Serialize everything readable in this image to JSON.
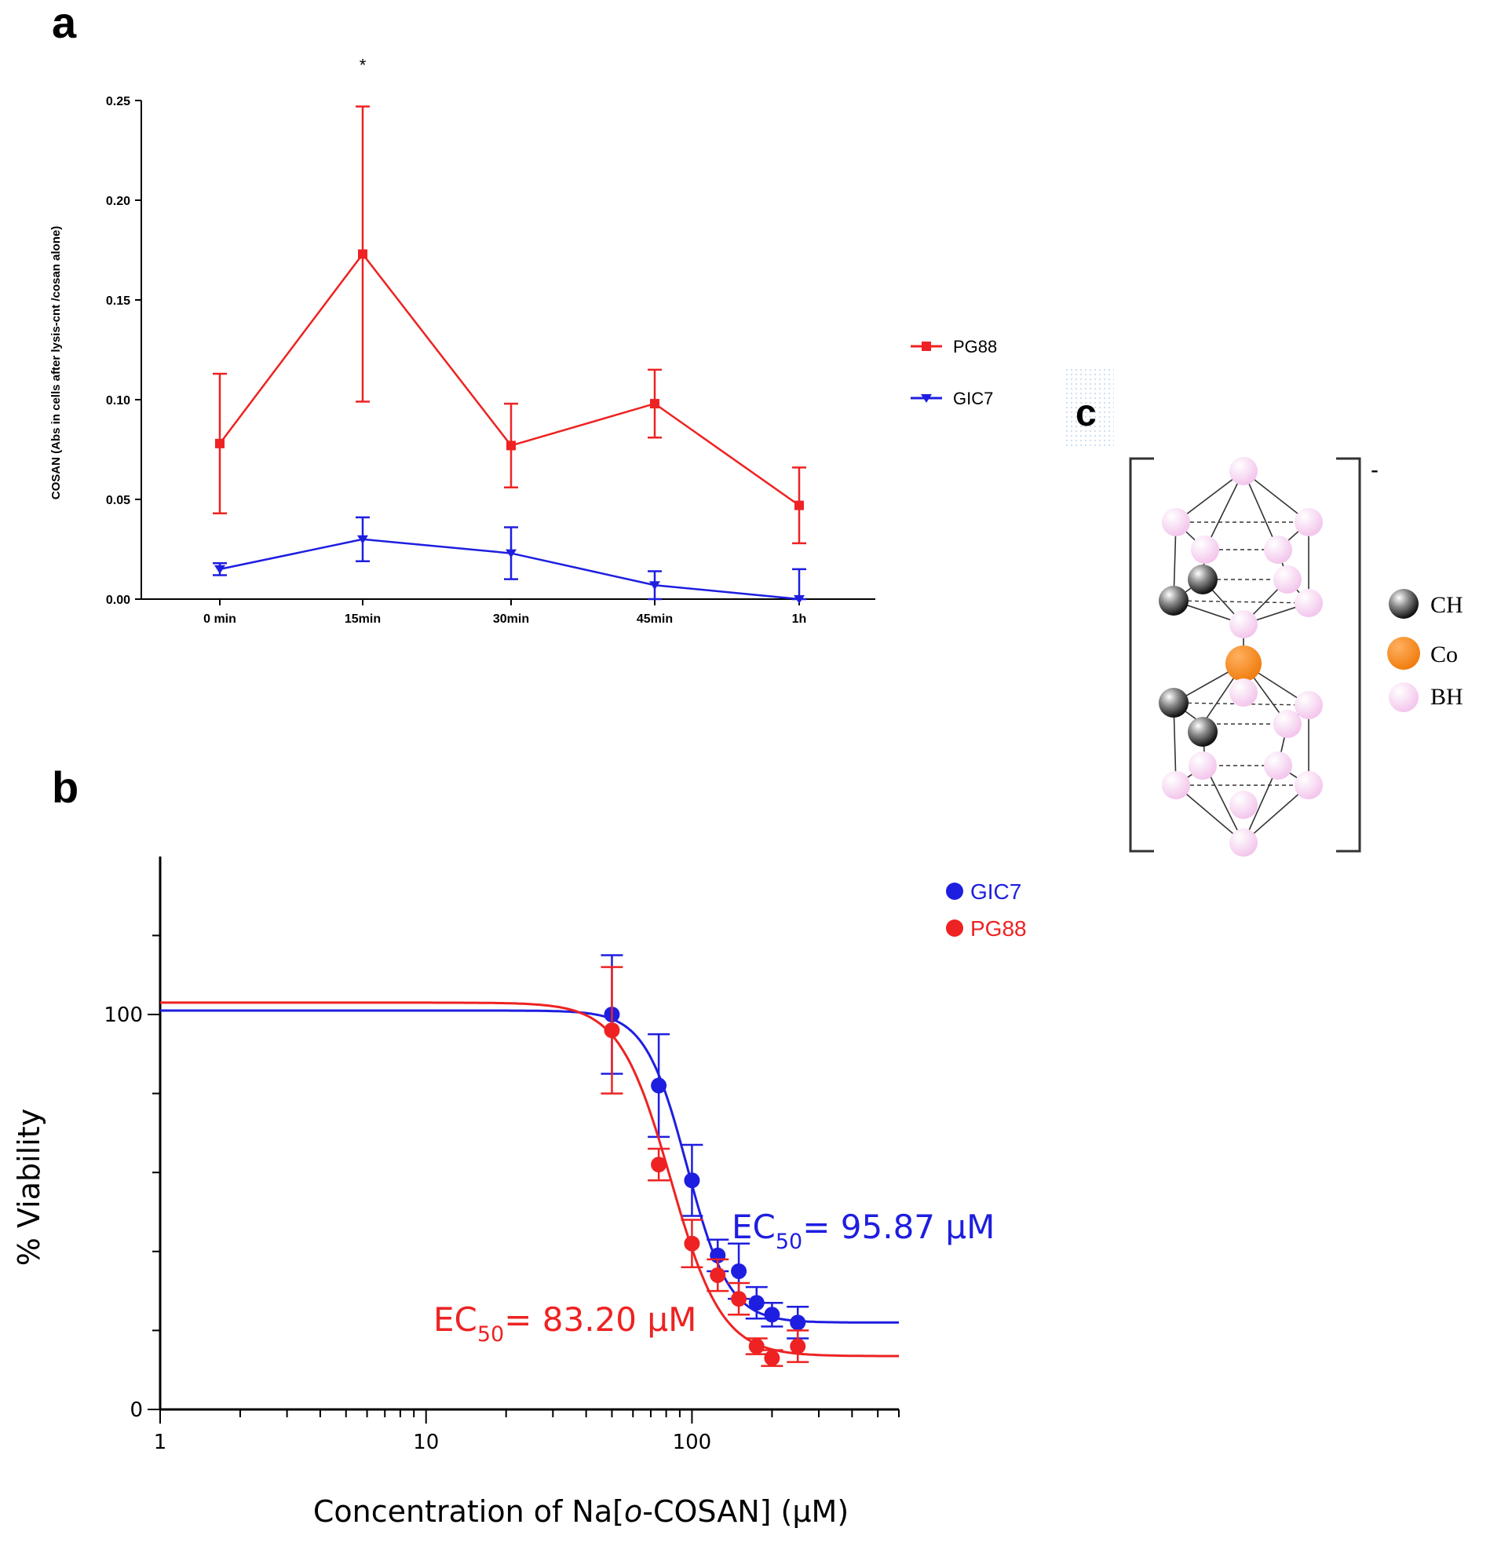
{
  "colors": {
    "red": "#ee2222",
    "blue": "#1e1ee0",
    "axis": "#000000",
    "co": "#f58a1f",
    "bh": "#f7d6f1",
    "ch": "#3a3a3a"
  },
  "panels": {
    "a": "a",
    "b": "b",
    "c": "c"
  },
  "chart_data": [
    {
      "id": "a",
      "type": "line",
      "title": "",
      "xlabel": "",
      "ylabel": "COSAN (Abs in cells after lysis-cnt /cosan alone)",
      "categories": [
        "0 min",
        "15min",
        "30min",
        "45min",
        "1h"
      ],
      "ylim": [
        0,
        0.25
      ],
      "yticks": [
        "0.00",
        "0.05",
        "0.10",
        "0.15",
        "0.20",
        "0.25"
      ],
      "annotations": [
        {
          "text": "*",
          "category": "15min",
          "y": 0.26
        }
      ],
      "series": [
        {
          "name": "PG88",
          "color": "#ee2222",
          "marker": "square",
          "values": [
            0.078,
            0.173,
            0.077,
            0.098,
            0.047
          ],
          "errors": [
            0.035,
            0.074,
            0.021,
            0.017,
            0.019
          ]
        },
        {
          "name": "GIC7",
          "color": "#1e1ee0",
          "marker": "triangle-down",
          "values": [
            0.015,
            0.03,
            0.023,
            0.007,
            0.0
          ],
          "errors": [
            0.003,
            0.011,
            0.013,
            0.007,
            0.015
          ]
        }
      ],
      "legend": "right"
    },
    {
      "id": "b",
      "type": "scatter",
      "title": "",
      "xlabel": "Concentration of Na[o-COSAN] (μM)",
      "xlabel_parts": [
        "Concentration of Na[",
        "o",
        "-COSAN] (μM)"
      ],
      "ylabel": "% Viability",
      "xscale": "log",
      "xlim": [
        1,
        600
      ],
      "ylim": [
        0,
        140
      ],
      "xticks": [
        "1",
        "10",
        "100"
      ],
      "yticks": [
        "0",
        "100"
      ],
      "series": [
        {
          "name": "GIC7",
          "color": "#1e1ee0",
          "x": [
            50,
            75,
            100,
            125,
            150,
            175,
            200,
            250
          ],
          "y": [
            100,
            82,
            58,
            39,
            35,
            27,
            24,
            22
          ],
          "errors": [
            15,
            13,
            9,
            4,
            7,
            4,
            3,
            4
          ],
          "fit": {
            "top": 101,
            "bottom": 22,
            "ec50": 95.87,
            "hill": 5.5
          },
          "ec50_label": {
            "prefix": "EC",
            "sub": "50",
            "suffix": "= 95.87 μM"
          }
        },
        {
          "name": "PG88",
          "color": "#ee2222",
          "x": [
            50,
            75,
            100,
            125,
            150,
            175,
            200,
            250
          ],
          "y": [
            96,
            62,
            42,
            34,
            28,
            16,
            13,
            16
          ],
          "errors": [
            16,
            4,
            6,
            4,
            4,
            2,
            2,
            4
          ],
          "fit": {
            "top": 103,
            "bottom": 13.5,
            "ec50": 83.2,
            "hill": 4.5
          },
          "ec50_label": {
            "prefix": "EC",
            "sub": "50",
            "suffix": "= 83.20 μM"
          }
        }
      ],
      "legend": "top-right"
    }
  ],
  "structure": {
    "charge": "-",
    "legend": [
      {
        "label": "CH",
        "color": "#3a3a3a"
      },
      {
        "label": "Co",
        "color": "#f58a1f"
      },
      {
        "label": "BH",
        "color": "#f7d6f1"
      }
    ]
  }
}
